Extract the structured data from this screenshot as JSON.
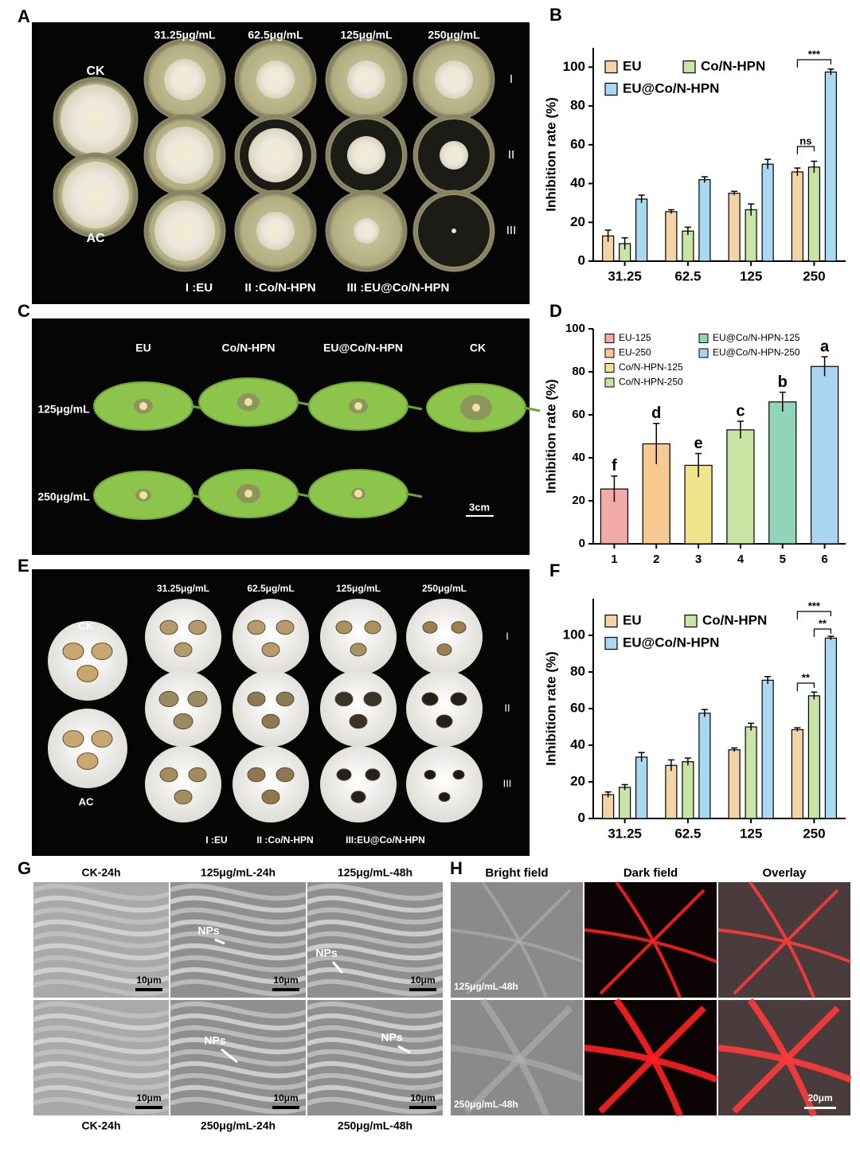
{
  "chart_data": [
    {
      "type": "bar",
      "categories": [
        "31.25",
        "62.5",
        "125",
        "250"
      ],
      "series": [
        {
          "name": "EU",
          "color": "#f3d4a6",
          "values": [
            13,
            25.5,
            35,
            46
          ],
          "errors": [
            3,
            1,
            1,
            2
          ]
        },
        {
          "name": "Co/N-HPN",
          "color": "#c8e4a6",
          "values": [
            9,
            15.5,
            26.5,
            48.5
          ],
          "errors": [
            3,
            2,
            3,
            3
          ]
        },
        {
          "name": "EU@Co/N-HPN",
          "color": "#a9d9f1",
          "values": [
            32,
            42,
            50,
            97.5
          ],
          "errors": [
            2,
            1.5,
            2.5,
            1.5
          ]
        }
      ],
      "ylim": [
        0,
        110
      ],
      "yticks": [
        0,
        20,
        40,
        60,
        80,
        100
      ],
      "y_label": "Inhibition rate (%)",
      "legend_position": "upper left",
      "annotations": [
        "***",
        "ns"
      ]
    },
    {
      "type": "bar",
      "categories": [
        "1",
        "2",
        "3",
        "4",
        "5",
        "6"
      ],
      "values": [
        25.5,
        46.5,
        36.5,
        53,
        66,
        82.5
      ],
      "errors": [
        6,
        9.5,
        5.5,
        4,
        4.5,
        4.5
      ],
      "letters": [
        "f",
        "d",
        "e",
        "c",
        "b",
        "a"
      ],
      "legend": [
        "EU-125",
        "EU-250",
        "Co/N-HPN-125",
        "Co/N-HPN-250",
        "EU@Co/N-HPN-125",
        "EU@Co/N-HPN-250"
      ],
      "colors": [
        "#f2aaa9",
        "#f6ca90",
        "#efe48c",
        "#c7e4a2",
        "#90d5b9",
        "#a9d5f1"
      ],
      "ylim": [
        0,
        100
      ],
      "yticks": [
        0,
        20,
        40,
        60,
        80,
        100
      ],
      "y_label": "Inhibition rate (%)",
      "legend_position": "upper left"
    },
    {
      "type": "bar",
      "categories": [
        "31.25",
        "62.5",
        "125",
        "250"
      ],
      "series": [
        {
          "name": "EU",
          "color": "#f3d4a6",
          "values": [
            13,
            29,
            37.5,
            48.5
          ],
          "errors": [
            1.5,
            3,
            1,
            1
          ]
        },
        {
          "name": "Co/N-HPN",
          "color": "#c8e4a6",
          "values": [
            17,
            31,
            50,
            67
          ],
          "errors": [
            1.5,
            2,
            2,
            2
          ]
        },
        {
          "name": "EU@Co/N-HPN",
          "color": "#a9d9f1",
          "values": [
            33.5,
            57.5,
            75.5,
            98.5
          ],
          "errors": [
            2.5,
            2,
            2,
            1
          ]
        }
      ],
      "ylim": [
        0,
        120
      ],
      "yticks": [
        0,
        20,
        40,
        60,
        80,
        100
      ],
      "y_label": "Inhibition rate (%)",
      "legend_position": "upper left",
      "annotations": [
        "***",
        "**",
        "**"
      ]
    }
  ],
  "panels": {
    "letters": [
      "A",
      "B",
      "C",
      "D",
      "E",
      "F",
      "G",
      "H"
    ],
    "A": {
      "concentrations": [
        "31.25μg/mL",
        "62.5μg/mL",
        "125μg/mL",
        "250μg/mL"
      ],
      "controls": [
        "CK",
        "AC"
      ],
      "rows": [
        "I",
        "II",
        "III"
      ],
      "legend": [
        "I :EU",
        "II :Co/N-HPN",
        "III :EU@Co/N-HPN"
      ]
    },
    "C": {
      "treatments": [
        "EU",
        "Co/N-HPN",
        "EU@Co/N-HPN",
        "CK"
      ],
      "concentrations": [
        "125μg/mL",
        "250μg/mL"
      ],
      "scale": "3cm"
    },
    "E": {
      "concentrations": [
        "31.25μg/mL",
        "62.5μg/mL",
        "125μg/mL",
        "250μg/mL"
      ],
      "controls": [
        "CK",
        "AC"
      ],
      "rows": [
        "I",
        "II",
        "III"
      ],
      "legend": [
        "I :EU",
        "II :Co/N-HPN",
        "III:EU@Co/N-HPN"
      ]
    },
    "G": {
      "top": [
        "CK-24h",
        "125μg/mL-24h",
        "125μg/mL-48h"
      ],
      "bottom": [
        "CK-24h",
        "250μg/mL-24h",
        "250μg/mL-48h"
      ],
      "scale": "10μm",
      "marker": "NPs"
    },
    "H": {
      "columns": [
        "Bright field",
        "Dark field",
        "Overlay"
      ],
      "rows": [
        "125μg/mL-48h",
        "250μg/mL-48h"
      ],
      "scale": "20μm"
    }
  }
}
